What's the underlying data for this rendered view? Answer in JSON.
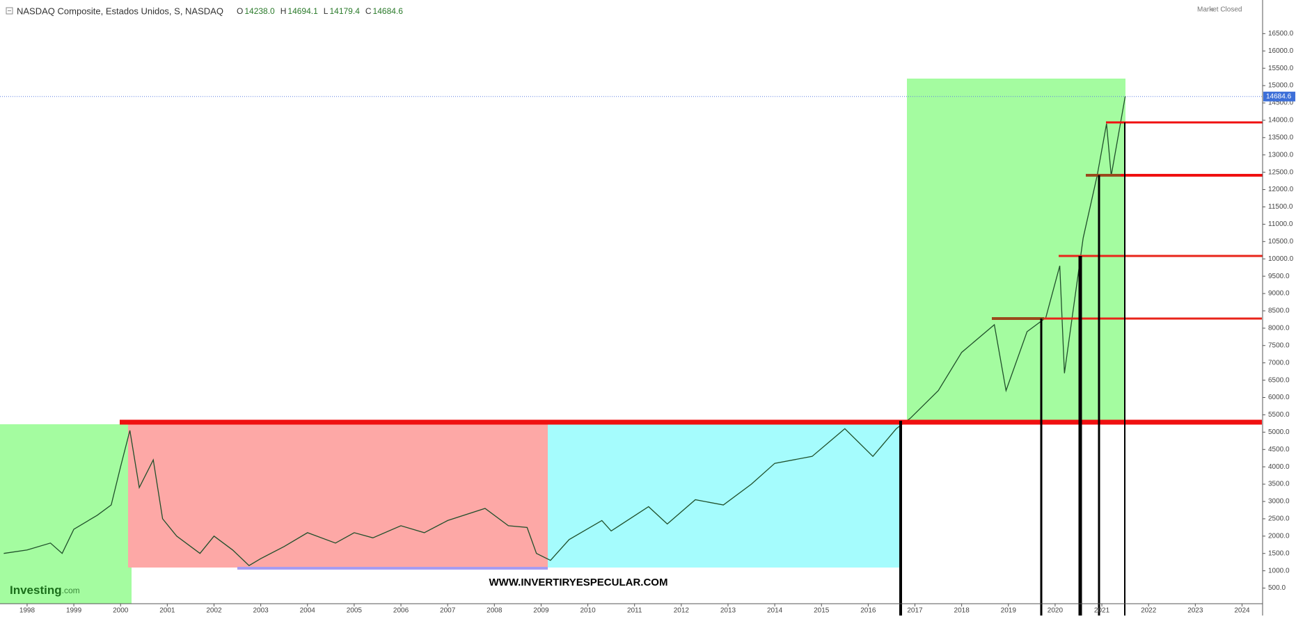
{
  "chart_data": {
    "type": "line",
    "title": "NASDAQ Composite, Estados Unidos, S, NASDAQ",
    "ohlc": [
      {
        "key": "O",
        "text": "14238.0"
      },
      {
        "key": "H",
        "text": "14694.1"
      },
      {
        "key": "L",
        "text": "14179.4"
      },
      {
        "key": "C",
        "text": "14684.6"
      }
    ],
    "status": "Market Closed",
    "last_price": {
      "value": 14684.6,
      "label": "14684.6"
    },
    "watermark_brand": "Investing",
    "watermark_suffix": ".com",
    "site": "WWW.INVERTIRYESPECULAR.COM",
    "color": "#1f4f2a",
    "x": [
      1997.5,
      1998.0,
      1998.5,
      1998.75,
      1999.0,
      1999.5,
      1999.8,
      2000.0,
      2000.2,
      2000.4,
      2000.7,
      2000.9,
      2001.2,
      2001.7,
      2002.0,
      2002.4,
      2002.75,
      2003.0,
      2003.5,
      2004.0,
      2004.6,
      2005.0,
      2005.4,
      2006.0,
      2006.5,
      2007.0,
      2007.8,
      2008.3,
      2008.7,
      2008.9,
      2009.2,
      2009.6,
      2010.3,
      2010.5,
      2011.3,
      2011.7,
      2012.3,
      2012.9,
      2013.5,
      2014.0,
      2014.8,
      2015.5,
      2016.1,
      2016.6,
      2016.9,
      2017.5,
      2018.0,
      2018.7,
      2018.95,
      2019.4,
      2019.8,
      2020.1,
      2020.2,
      2020.6,
      2020.9,
      2021.1,
      2021.2,
      2021.5
    ],
    "series": [
      {
        "name": "NASDAQ Composite",
        "values": [
          1500,
          1600,
          1800,
          1500,
          2200,
          2600,
          2900,
          4000,
          5050,
          3400,
          4200,
          2500,
          2000,
          1500,
          2000,
          1600,
          1150,
          1350,
          1700,
          2100,
          1800,
          2100,
          1950,
          2300,
          2100,
          2450,
          2800,
          2300,
          2250,
          1500,
          1300,
          1900,
          2450,
          2150,
          2850,
          2350,
          3050,
          2900,
          3500,
          4100,
          4300,
          5100,
          4300,
          5100,
          5400,
          6200,
          7300,
          8100,
          6200,
          7900,
          8300,
          9800,
          6700,
          10600,
          12400,
          13900,
          12400,
          14685
        ]
      }
    ],
    "xlim": [
      1997.42,
      2024.44
    ],
    "ylim": [
      50,
      17470
    ],
    "xticks": [
      1998,
      1999,
      2000,
      2001,
      2002,
      2003,
      2004,
      2005,
      2006,
      2007,
      2008,
      2009,
      2010,
      2011,
      2012,
      2013,
      2014,
      2015,
      2016,
      2017,
      2018,
      2019,
      2020,
      2021,
      2022,
      2023,
      2024
    ],
    "yticks": [
      {
        "value": 500,
        "label": "500.0"
      },
      {
        "value": 1000,
        "label": "1000.0"
      },
      {
        "value": 1500,
        "label": "1500.0"
      },
      {
        "value": 2000,
        "label": "2000.0"
      },
      {
        "value": 2500,
        "label": "2500.0"
      },
      {
        "value": 3000,
        "label": "3000.0"
      },
      {
        "value": 3500,
        "label": "3500.0"
      },
      {
        "value": 4000,
        "label": "4000.0"
      },
      {
        "value": 4500,
        "label": "4500.0"
      },
      {
        "value": 5000,
        "label": "5000.0"
      },
      {
        "value": 5500,
        "label": "5500.0"
      },
      {
        "value": 6000,
        "label": "6000.0"
      },
      {
        "value": 6500,
        "label": "6500.0"
      },
      {
        "value": 7000,
        "label": "7000.0"
      },
      {
        "value": 7500,
        "label": "7500.0"
      },
      {
        "value": 8000,
        "label": "8000.0"
      },
      {
        "value": 8500,
        "label": "8500.0"
      },
      {
        "value": 9000,
        "label": "9000.0"
      },
      {
        "value": 9500,
        "label": "9500.0"
      },
      {
        "value": 10000,
        "label": "10000.0"
      },
      {
        "value": 10500,
        "label": "10500.0"
      },
      {
        "value": 11000,
        "label": "11000.0"
      },
      {
        "value": 11500,
        "label": "11500.0"
      },
      {
        "value": 12000,
        "label": "12000.0"
      },
      {
        "value": 12500,
        "label": "12500.0"
      },
      {
        "value": 13000,
        "label": "13000.0"
      },
      {
        "value": 13500,
        "label": "13500.0"
      },
      {
        "value": 14000,
        "label": "14000.0"
      },
      {
        "value": 14500,
        "label": "14500.0"
      },
      {
        "value": 15000,
        "label": "15000.0"
      },
      {
        "value": 15500,
        "label": "15500.0"
      },
      {
        "value": 16000,
        "label": "16000.0"
      },
      {
        "value": 16500,
        "label": "16500.0"
      }
    ],
    "grid": false
  }
}
